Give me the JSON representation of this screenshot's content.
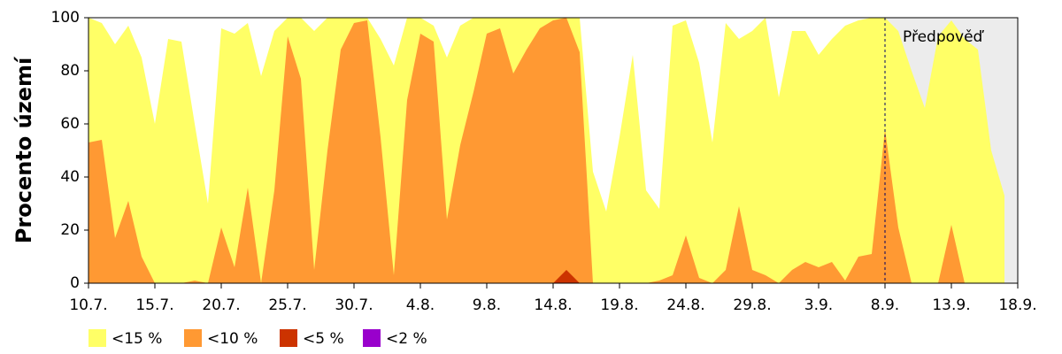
{
  "chart_data": {
    "type": "area",
    "y_label": "Procento území",
    "categories": [
      "10.7.",
      null,
      null,
      null,
      null,
      "15.7.",
      null,
      null,
      null,
      null,
      "20.7.",
      null,
      null,
      null,
      null,
      "25.7.",
      null,
      null,
      null,
      null,
      "30.7.",
      null,
      null,
      null,
      null,
      "4.8.",
      null,
      null,
      null,
      null,
      "9.8.",
      null,
      null,
      null,
      null,
      "14.8.",
      null,
      null,
      null,
      null,
      "19.8.",
      null,
      null,
      null,
      null,
      "24.8.",
      null,
      null,
      null,
      null,
      "29.8.",
      null,
      null,
      null,
      null,
      "3.9.",
      null,
      null,
      null,
      null,
      "8.9.",
      null,
      null,
      null,
      null,
      "13.9.",
      null,
      null,
      null,
      null,
      "18.9."
    ],
    "series": [
      {
        "name": "<15 %",
        "color": "#ffff66",
        "values": [
          100,
          98,
          90,
          97,
          85,
          60,
          92,
          91,
          60,
          30,
          96,
          94,
          98,
          78,
          95,
          100,
          100,
          95,
          100,
          100,
          100,
          100,
          92,
          82,
          100,
          100,
          97,
          85,
          97,
          100,
          100,
          100,
          100,
          100,
          100,
          100,
          100,
          100,
          42,
          27,
          55,
          86,
          35,
          28,
          97,
          99,
          83,
          53,
          98,
          92,
          95,
          100,
          70,
          95,
          95,
          86,
          92,
          97,
          99,
          100,
          100,
          95,
          80,
          66,
          93,
          99,
          92,
          88,
          50,
          33,
          null
        ]
      },
      {
        "name": "<10 %",
        "color": "#ff9933",
        "values": [
          53,
          54,
          17,
          31,
          10,
          0,
          0,
          0,
          1,
          0,
          21,
          6,
          36,
          0,
          35,
          93,
          77,
          5,
          50,
          88,
          98,
          99,
          55,
          3,
          69,
          94,
          91,
          24,
          52,
          72,
          94,
          96,
          79,
          88,
          96,
          99,
          100,
          87,
          0,
          0,
          0,
          0,
          0,
          1,
          3,
          18,
          2,
          0,
          5,
          29,
          5,
          3,
          0,
          5,
          8,
          6,
          8,
          1,
          10,
          11,
          58,
          21,
          0,
          0,
          0,
          22,
          0,
          0,
          0,
          0,
          null
        ]
      },
      {
        "name": "<5 %",
        "color": "#cc3300",
        "values": [
          0,
          0,
          0,
          0,
          0,
          0,
          0,
          0,
          0,
          0,
          0,
          0,
          0,
          0,
          0,
          0,
          0,
          0,
          0,
          0,
          0,
          0,
          0,
          0,
          0,
          0,
          0,
          0,
          0,
          0,
          0,
          0,
          0,
          0,
          0,
          0,
          5,
          0,
          0,
          0,
          0,
          0,
          0,
          0,
          0,
          0,
          0,
          0,
          0,
          0,
          0,
          0,
          0,
          0,
          0,
          0,
          0,
          0,
          0,
          0,
          0,
          0,
          0,
          0,
          0,
          0,
          0,
          0,
          0,
          0,
          null
        ]
      },
      {
        "name": "<2 %",
        "color": "#9900cc",
        "values": [
          0,
          0,
          0,
          0,
          0,
          0,
          0,
          0,
          0,
          0,
          0,
          0,
          0,
          0,
          0,
          0,
          0,
          0,
          0,
          0,
          0,
          0,
          0,
          0,
          0,
          0,
          0,
          0,
          0,
          0,
          0,
          0,
          0,
          0,
          0,
          0,
          0,
          0,
          0,
          0,
          0,
          0,
          0,
          0,
          0,
          0,
          0,
          0,
          0,
          0,
          0,
          0,
          0,
          0,
          0,
          0,
          0,
          0,
          0,
          0,
          0,
          0,
          0,
          0,
          0,
          0,
          0,
          0,
          0,
          0,
          null
        ]
      }
    ],
    "ylim": [
      0,
      100
    ],
    "yticks": [
      0,
      20,
      40,
      60,
      80,
      100
    ],
    "forecast": {
      "label": "Předpověď",
      "from": "8.9.",
      "color": "#ececec"
    }
  }
}
